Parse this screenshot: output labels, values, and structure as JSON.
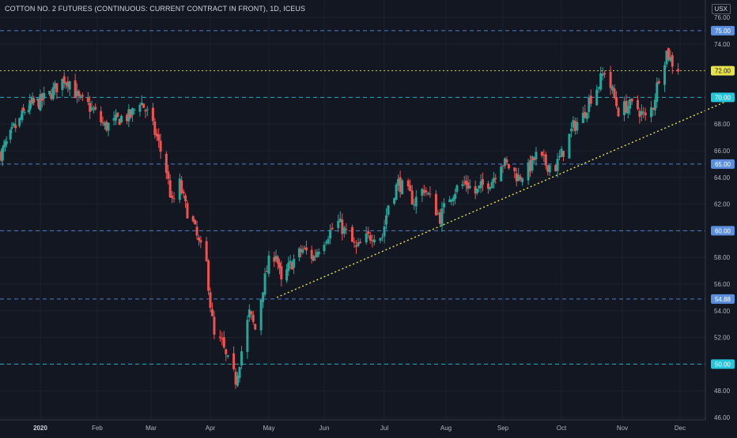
{
  "header": {
    "title": "COTTON NO. 2 FUTURES (CONTINUOUS: CURRENT CONTRACT IN FRONT), 1D, ICEUS",
    "currency": "USX"
  },
  "colors": {
    "background": "#131722",
    "grid": "#1e222d",
    "up": "#26a69a",
    "down": "#ef5350",
    "axis_text": "#b2b5be",
    "level_blue": "#5b8fdd",
    "level_cyan": "#26c6da",
    "level_yellow": "#e8e24a"
  },
  "chart_data": {
    "type": "candlestick",
    "title": "COTTON NO. 2 FUTURES (CONTINUOUS: CURRENT CONTRACT IN FRONT), 1D, ICEUS",
    "unit": "USX",
    "ylim": [
      46,
      76.5
    ],
    "y_ticks": [
      "46.00",
      "48.00",
      "50.00",
      "52.00",
      "54.00",
      "56.00",
      "58.00",
      "60.00",
      "62.00",
      "64.00",
      "66.00",
      "68.00",
      "70.00",
      "72.00",
      "74.00",
      "76.00"
    ],
    "x_ticks": [
      {
        "label": "2020",
        "bold": true
      },
      {
        "label": "Feb"
      },
      {
        "label": "Mar"
      },
      {
        "label": "Apr"
      },
      {
        "label": "May"
      },
      {
        "label": "Jun"
      },
      {
        "label": "Jul"
      },
      {
        "label": "Aug"
      },
      {
        "label": "Sep"
      },
      {
        "label": "Oct"
      },
      {
        "label": "Nov"
      },
      {
        "label": "Dec"
      }
    ],
    "horizontal_levels": [
      {
        "price": 75.0,
        "label": "75.00",
        "style": "blue"
      },
      {
        "price": 72.0,
        "label": "72.00",
        "style": "yellow"
      },
      {
        "price": 70.0,
        "label": "70.00",
        "style": "cyan"
      },
      {
        "price": 65.0,
        "label": "65.00",
        "style": "blue"
      },
      {
        "price": 60.0,
        "label": "60.00",
        "style": "blue"
      },
      {
        "price": 54.88,
        "label": "54.88",
        "style": "blue"
      },
      {
        "price": 50.0,
        "label": "50.00",
        "style": "cyan"
      }
    ],
    "trendline": {
      "start_date": "2020-05-01",
      "start_price": 55.0,
      "end_date": "2020-12-31",
      "end_price": 70.0
    },
    "grid": true,
    "closes": [
      [
        "2019-12-02",
        65.8
      ],
      [
        "2019-12-06",
        66.5
      ],
      [
        "2019-12-11",
        67.5
      ],
      [
        "2019-12-16",
        68.2
      ],
      [
        "2019-12-20",
        69.0
      ],
      [
        "2019-12-26",
        69.5
      ],
      [
        "2019-12-31",
        69.6
      ],
      [
        "2020-01-06",
        70.2
      ],
      [
        "2020-01-10",
        70.8
      ],
      [
        "2020-01-14",
        71.4
      ],
      [
        "2020-01-17",
        71.2
      ],
      [
        "2020-01-22",
        69.8
      ],
      [
        "2020-01-27",
        69.4
      ],
      [
        "2020-01-31",
        68.8
      ],
      [
        "2020-02-05",
        67.8
      ],
      [
        "2020-02-10",
        68.1
      ],
      [
        "2020-02-14",
        68.5
      ],
      [
        "2020-02-19",
        68.6
      ],
      [
        "2020-02-24",
        69.8
      ],
      [
        "2020-02-28",
        68.8
      ],
      [
        "2020-03-04",
        67.0
      ],
      [
        "2020-03-09",
        64.5
      ],
      [
        "2020-03-12",
        62.0
      ],
      [
        "2020-03-16",
        63.5
      ],
      [
        "2020-03-19",
        61.8
      ],
      [
        "2020-03-23",
        60.5
      ],
      [
        "2020-03-26",
        59.0
      ],
      [
        "2020-03-30",
        57.5
      ],
      [
        "2020-04-01",
        54.5
      ],
      [
        "2020-04-03",
        52.0
      ],
      [
        "2020-04-07",
        51.5
      ],
      [
        "2020-04-09",
        50.5
      ],
      [
        "2020-04-14",
        48.8
      ],
      [
        "2020-04-17",
        51.0
      ],
      [
        "2020-04-21",
        53.8
      ],
      [
        "2020-04-24",
        52.6
      ],
      [
        "2020-04-28",
        55.8
      ],
      [
        "2020-05-01",
        57.6
      ],
      [
        "2020-05-05",
        58.4
      ],
      [
        "2020-05-08",
        56.0
      ],
      [
        "2020-05-12",
        57.2
      ],
      [
        "2020-05-15",
        57.8
      ],
      [
        "2020-05-20",
        58.6
      ],
      [
        "2020-05-26",
        58.0
      ],
      [
        "2020-05-29",
        58.8
      ],
      [
        "2020-06-03",
        59.8
      ],
      [
        "2020-06-08",
        60.6
      ],
      [
        "2020-06-12",
        59.8
      ],
      [
        "2020-06-17",
        58.6
      ],
      [
        "2020-06-22",
        59.4
      ],
      [
        "2020-06-26",
        59.8
      ],
      [
        "2020-06-30",
        59.6
      ],
      [
        "2020-07-03",
        62.0
      ],
      [
        "2020-07-08",
        63.6
      ],
      [
        "2020-07-13",
        62.8
      ],
      [
        "2020-07-16",
        62.2
      ],
      [
        "2020-07-21",
        63.2
      ],
      [
        "2020-07-24",
        62.4
      ],
      [
        "2020-07-29",
        61.0
      ],
      [
        "2020-08-03",
        62.6
      ],
      [
        "2020-08-07",
        63.2
      ],
      [
        "2020-08-12",
        63.6
      ],
      [
        "2020-08-17",
        62.8
      ],
      [
        "2020-08-21",
        63.4
      ],
      [
        "2020-08-26",
        63.8
      ],
      [
        "2020-08-31",
        65.2
      ],
      [
        "2020-09-04",
        64.8
      ],
      [
        "2020-09-09",
        64.0
      ],
      [
        "2020-09-14",
        64.6
      ],
      [
        "2020-09-18",
        65.6
      ],
      [
        "2020-09-23",
        65.0
      ],
      [
        "2020-09-28",
        64.8
      ],
      [
        "2020-10-02",
        66.0
      ],
      [
        "2020-10-07",
        67.8
      ],
      [
        "2020-10-12",
        68.6
      ],
      [
        "2020-10-15",
        69.8
      ],
      [
        "2020-10-20",
        71.0
      ],
      [
        "2020-10-23",
        72.0
      ],
      [
        "2020-10-27",
        70.4
      ],
      [
        "2020-10-30",
        69.0
      ],
      [
        "2020-11-04",
        69.4
      ],
      [
        "2020-11-09",
        69.2
      ],
      [
        "2020-11-13",
        68.4
      ],
      [
        "2020-11-17",
        69.4
      ],
      [
        "2020-11-20",
        71.6
      ],
      [
        "2020-11-24",
        73.4
      ],
      [
        "2020-11-27",
        72.6
      ],
      [
        "2020-11-30",
        72.2
      ]
    ]
  }
}
